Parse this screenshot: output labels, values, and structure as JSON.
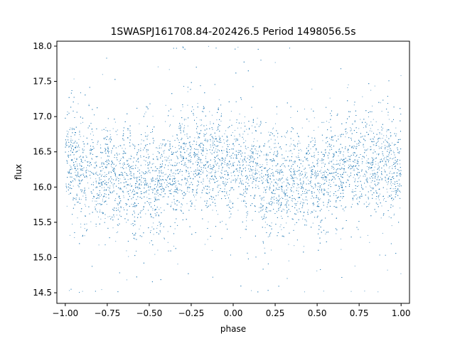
{
  "chart_data": {
    "type": "scatter",
    "title": "1SWASPJ161708.84-202426.5 Period 1498056.5s",
    "xlabel": "phase",
    "ylabel": "flux",
    "xlim": [
      -1.05,
      1.05
    ],
    "ylim": [
      14.35,
      18.07
    ],
    "x_ticks": [
      -1.0,
      -0.75,
      -0.5,
      -0.25,
      0.0,
      0.25,
      0.5,
      0.75,
      1.0
    ],
    "x_tick_labels": [
      "−1.00",
      "−0.75",
      "−0.50",
      "−0.25",
      "0.00",
      "0.25",
      "0.50",
      "0.75",
      "1.00"
    ],
    "y_ticks": [
      14.5,
      15.0,
      15.5,
      16.0,
      16.5,
      17.0,
      17.5,
      18.0
    ],
    "y_tick_labels": [
      "14.5",
      "15.0",
      "15.5",
      "16.0",
      "16.5",
      "17.0",
      "17.5",
      "18.0"
    ],
    "grid": false,
    "marker_color": "#1f77b4",
    "series": [
      {
        "x_range": [
          -1.0,
          1.0
        ],
        "mean_flux_profile": [
          [
            -1.0,
            16.3
          ],
          [
            -0.75,
            16.15
          ],
          [
            -0.5,
            16.05
          ],
          [
            -0.25,
            16.35
          ],
          [
            0.0,
            16.3
          ],
          [
            0.25,
            16.05
          ],
          [
            0.5,
            16.1
          ],
          [
            0.75,
            16.35
          ],
          [
            1.0,
            16.3
          ]
        ],
        "typical_spread": 0.35,
        "min_flux": 14.5,
        "max_flux": 18.0
      }
    ]
  }
}
